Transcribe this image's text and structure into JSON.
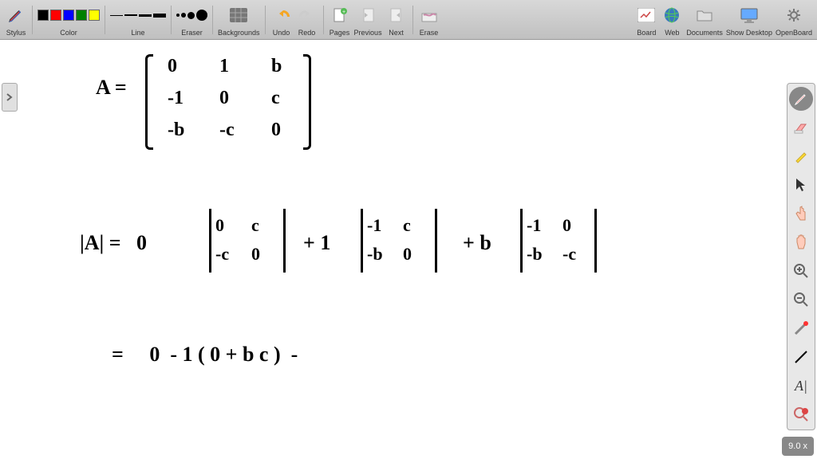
{
  "toolbar": {
    "stylus_label": "Stylus",
    "color_label": "Color",
    "colors": [
      "#000000",
      "#ff0000",
      "#0000ff",
      "#008000",
      "#ffff00"
    ],
    "line_label": "Line",
    "line_widths": [
      1,
      2,
      3,
      5
    ],
    "eraser_label": "Eraser",
    "eraser_sizes": [
      4,
      6,
      9,
      14
    ],
    "backgrounds_label": "Backgrounds",
    "undo_label": "Undo",
    "redo_label": "Redo",
    "pages_label": "Pages",
    "previous_label": "Previous",
    "next_label": "Next",
    "erase_label": "Erase",
    "board_label": "Board",
    "web_label": "Web",
    "documents_label": "Documents",
    "show_desktop_label": "Show Desktop",
    "openboard_label": "OpenBoard"
  },
  "zoom": "9.0 x",
  "handwriting": {
    "line1": "A =",
    "matrix_rows": [
      [
        "0",
        "1",
        "b"
      ],
      [
        "-1",
        "0",
        "c"
      ],
      [
        "-b",
        "-c",
        "0"
      ]
    ],
    "line2_pre": "|A| =   0",
    "det1": [
      [
        "0",
        "c"
      ],
      [
        "-c",
        "0"
      ]
    ],
    "plus1": "+ 1",
    "det2": [
      [
        "-1",
        "c"
      ],
      [
        "-b",
        "0"
      ]
    ],
    "plus2": "+ b",
    "det3": [
      [
        "-1",
        "0"
      ],
      [
        "-b",
        "-c"
      ]
    ],
    "line3": "=     0  - 1 ( 0 + b c )  -"
  },
  "style": {
    "toolbar_bg_top": "#d8d8d8",
    "toolbar_bg_bottom": "#c0c0c0",
    "hw_color": "#000000",
    "hw_fontsize": 26
  }
}
